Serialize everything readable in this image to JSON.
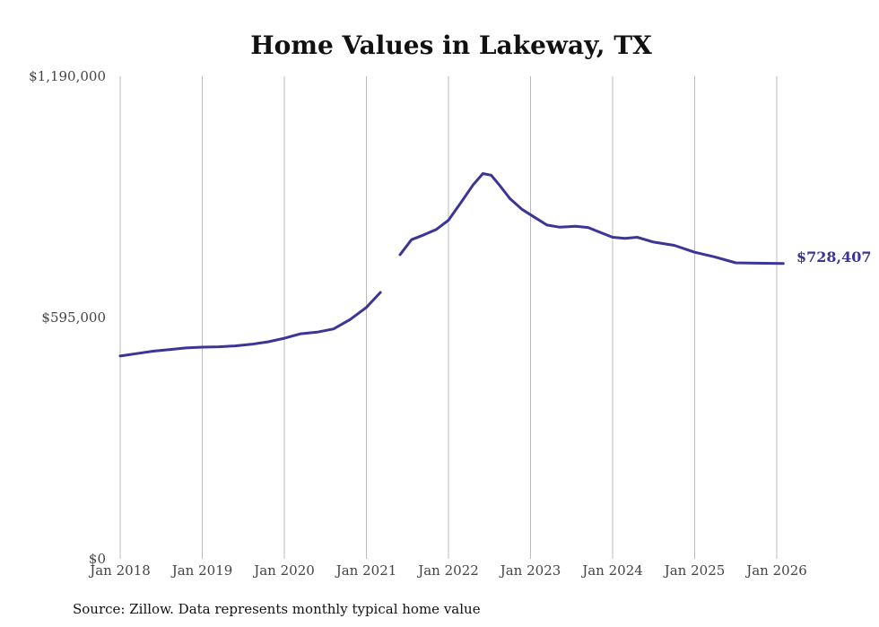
{
  "chart_data": {
    "type": "line",
    "title": "Home Values in Lakeway, TX",
    "xlabel": "",
    "ylabel": "",
    "ylim": [
      0,
      1190000
    ],
    "y_ticks": [
      {
        "value": 0,
        "label": "$0"
      },
      {
        "value": 595000,
        "label": "$595,000"
      },
      {
        "value": 1190000,
        "label": "$1,190,000"
      }
    ],
    "x_range": [
      2018.0,
      2026.0
    ],
    "x_ticks": [
      {
        "value": 2018,
        "label": "Jan 2018"
      },
      {
        "value": 2019,
        "label": "Jan 2019"
      },
      {
        "value": 2020,
        "label": "Jan 2020"
      },
      {
        "value": 2021,
        "label": "Jan 2021"
      },
      {
        "value": 2022,
        "label": "Jan 2022"
      },
      {
        "value": 2023,
        "label": "Jan 2023"
      },
      {
        "value": 2024,
        "label": "Jan 2024"
      },
      {
        "value": 2025,
        "label": "Jan 2025"
      },
      {
        "value": 2026,
        "label": "Jan 2026"
      }
    ],
    "grid": "vertical",
    "series": [
      {
        "name": "Typical home value",
        "color": "#3a3596",
        "segments": [
          [
            [
              2018.0,
              500000
            ],
            [
              2018.2,
              506000
            ],
            [
              2018.4,
              512000
            ],
            [
              2018.6,
              516000
            ],
            [
              2018.8,
              520000
            ],
            [
              2019.0,
              522000
            ],
            [
              2019.2,
              523000
            ],
            [
              2019.4,
              525000
            ],
            [
              2019.6,
              529000
            ],
            [
              2019.8,
              535000
            ],
            [
              2020.0,
              544000
            ],
            [
              2020.2,
              555000
            ],
            [
              2020.4,
              559000
            ],
            [
              2020.6,
              567000
            ],
            [
              2020.8,
              590000
            ],
            [
              2021.0,
              620000
            ],
            [
              2021.17,
              657000
            ]
          ],
          [
            [
              2021.41,
              750000
            ],
            [
              2021.55,
              787000
            ],
            [
              2021.7,
              799000
            ],
            [
              2021.85,
              812000
            ],
            [
              2022.0,
              835000
            ],
            [
              2022.15,
              878000
            ],
            [
              2022.3,
              922000
            ],
            [
              2022.42,
              950000
            ],
            [
              2022.52,
              946000
            ],
            [
              2022.62,
              922000
            ],
            [
              2022.75,
              888000
            ],
            [
              2022.9,
              861000
            ],
            [
              2023.05,
              842000
            ],
            [
              2023.2,
              823000
            ],
            [
              2023.35,
              818000
            ],
            [
              2023.55,
              820000
            ],
            [
              2023.7,
              817000
            ],
            [
              2023.85,
              805000
            ],
            [
              2024.0,
              793000
            ],
            [
              2024.15,
              790000
            ],
            [
              2024.3,
              793000
            ],
            [
              2024.5,
              781000
            ],
            [
              2024.75,
              773000
            ],
            [
              2025.0,
              756000
            ],
            [
              2025.25,
              744000
            ],
            [
              2025.5,
              730000
            ],
            [
              2025.75,
              729000
            ],
            [
              2026.08,
              728407
            ]
          ]
        ]
      }
    ],
    "end_label": "$728,407"
  },
  "source": "Source: Zillow. Data represents monthly typical home value"
}
